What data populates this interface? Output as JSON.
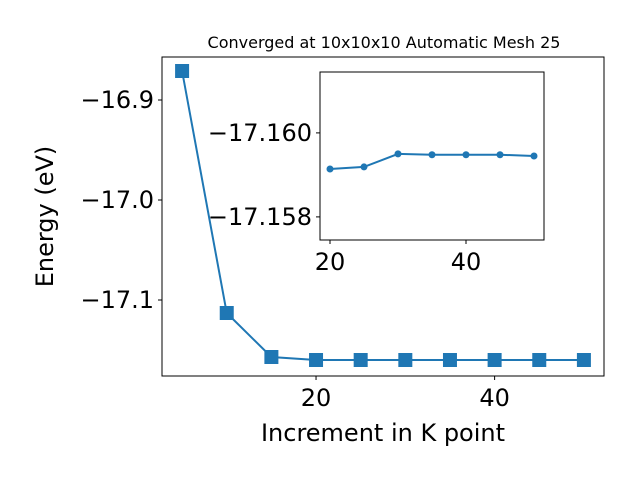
{
  "chart_data": [
    {
      "type": "line",
      "title": "Converged at 10x10x10 Automatic Mesh 25",
      "x_label": "Increment in K point",
      "y_label": "Energy (eV)",
      "marker": "square",
      "series": [
        {
          "color": "#1f77b4",
          "x": [
            5,
            10,
            15,
            20,
            25,
            30,
            35,
            40,
            45,
            50
          ],
          "values": [
            -16.871,
            -17.113,
            -17.157,
            -17.16,
            -17.16,
            -17.16,
            -17.16,
            -17.16,
            -17.16,
            -17.16
          ]
        }
      ],
      "xlim": [
        2.75,
        52.25
      ],
      "xticks": [
        20,
        40
      ],
      "ylim": [
        -17.176,
        -16.857
      ],
      "yticks": [
        {
          "value": -17.1,
          "label": "−17.1"
        },
        {
          "value": -17.0,
          "label": "−17.0"
        },
        {
          "value": -16.9,
          "label": "−16.9"
        }
      ]
    },
    {
      "type": "line",
      "marker": "circle",
      "series": [
        {
          "color": "#1f77b4",
          "x": [
            20,
            25,
            30,
            35,
            40,
            45,
            50
          ],
          "values": [
            -17.15914,
            -17.15919,
            -17.1595,
            -17.15948,
            -17.15948,
            -17.15948,
            -17.15945
          ]
        }
      ],
      "xlim": [
        18.53,
        51.47
      ],
      "xticks": [
        20,
        40
      ],
      "ylim": [
        -17.15745,
        -17.16145
      ],
      "yticks": [
        {
          "value": -17.158,
          "label": "−17.158"
        },
        {
          "value": -17.16,
          "label": "−17.160"
        }
      ]
    }
  ]
}
